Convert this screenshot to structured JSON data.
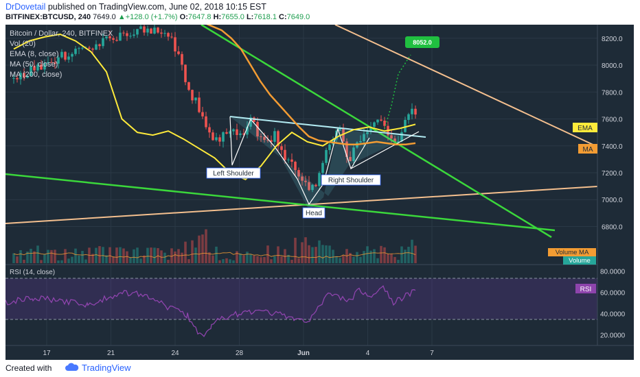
{
  "header": {
    "author": "DrDovetail",
    "published_text": " published on TradingView.com, June 02, 2018 10:15 EST",
    "symbol": "BITFINEX:BTCUSD, 240",
    "last": "7649.0",
    "change_arrow": "▲",
    "change": "+128.0 (+1.7%)",
    "open_label": "O:",
    "open": "7647.8",
    "high_label": "H:",
    "high": "7655.0",
    "low_label": "L:",
    "low": "7618.1",
    "close_label": "C:",
    "close": "7649.0"
  },
  "legend": [
    "Bitcoin / Dollar, 240, BITFINEX",
    "Vol (20)",
    "EMA (8, close)",
    "MA (50, close)",
    "MA (200, close)"
  ],
  "rsi_title": "RSI (14, close)",
  "footer": {
    "created": "Created with",
    "brand": "TradingView"
  },
  "colors": {
    "background": "#1e2b37",
    "up": "#26a69a",
    "down": "#ef5350",
    "ema": "#ffeb3b",
    "ma50": "#f39c33",
    "ma200": "#f5c08f",
    "trend": "#3bd83b",
    "rsi": "#8e44ad",
    "target": "#20c040"
  },
  "chart_data": {
    "type": "candlestick",
    "price_axis": {
      "ticks": [
        "8200.0",
        "8000.0",
        "7800.0",
        "7600.0",
        "7400.0",
        "7200.0",
        "7000.0",
        "6800.0"
      ],
      "range": [
        6680,
        8250
      ]
    },
    "time_axis": {
      "ticks": [
        "17",
        "21",
        "24",
        "28",
        "Jun",
        "4",
        "7"
      ]
    },
    "rsi_axis": {
      "ticks": [
        "80.0000",
        "60.0000",
        "40.0000",
        "20.0000"
      ],
      "range": [
        10,
        85
      ],
      "bands": [
        70,
        30
      ]
    },
    "labels": {
      "ema": "EMA",
      "ma": "MA",
      "volume_ma": "Volume MA",
      "volume": "Volume",
      "rsi": "RSI",
      "target": "8052.0"
    },
    "annotations": [
      "Left Shoulder",
      "Head",
      "Right Shoulder"
    ],
    "key_prices": {
      "last": 7649.0,
      "ema": 7560,
      "ma": 7420,
      "target": 8052.0,
      "head_low": 7040,
      "neckline": 7650
    },
    "series": [
      {
        "name": "EMA",
        "values": [
          8120,
          8180,
          8210,
          8230,
          8180,
          8100,
          7950,
          7600,
          7500,
          7480,
          7510,
          7450,
          7380,
          7310,
          7200,
          7150,
          7250,
          7400,
          7500,
          7430,
          7400,
          7470,
          7520,
          7540,
          7510,
          7530,
          7560
        ]
      },
      {
        "name": "MA",
        "values": [
          8400,
          8380,
          8360,
          8340,
          8320,
          8290,
          8260,
          8200,
          8120,
          8000,
          7880,
          7780,
          7700,
          7620,
          7540,
          7470,
          7440,
          7430,
          7420,
          7410,
          7410,
          7420,
          7430,
          7420,
          7410,
          7410,
          7420
        ]
      },
      {
        "name": "Volume MA"
      }
    ]
  }
}
